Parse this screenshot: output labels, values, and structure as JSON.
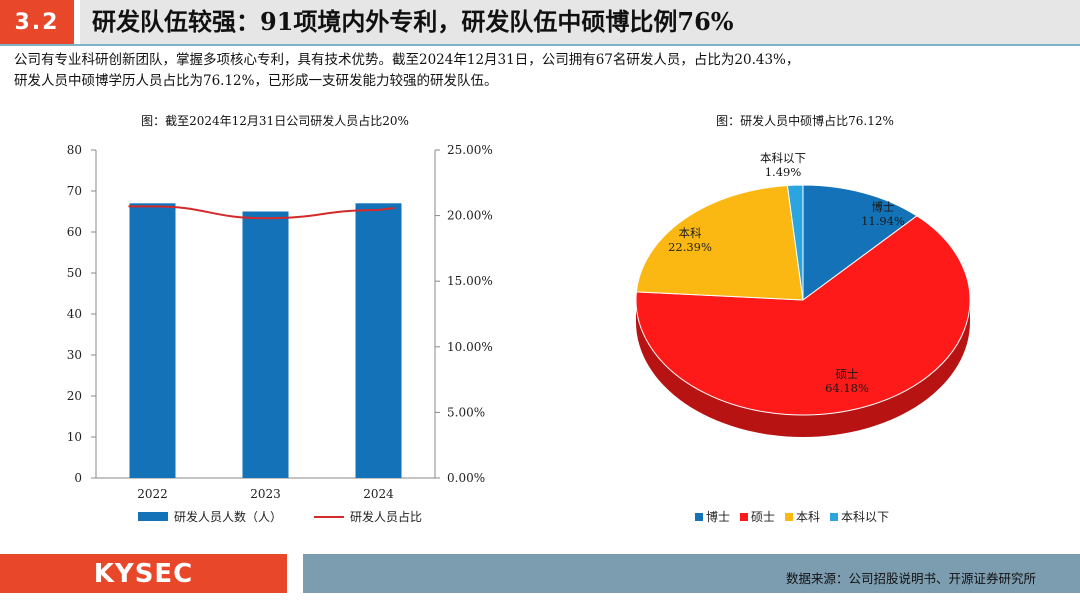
{
  "header": {
    "section_number": "3.2",
    "title": "研发队伍较强：91项境内外专利，研发队伍中硕博比例76%"
  },
  "intro": {
    "line1": "公司有专业科研创新团队，掌握多项核心专利，具有技术优势。截至2024年12月31日，公司拥有67名研发人员，占比为20.43%，",
    "line2": "研发人员中硕博学历人员占比为76.12%，已形成一支研发能力较强的研发队伍。"
  },
  "chart_data": [
    {
      "type": "bar",
      "title": "图：截至2024年12月31日公司研发人员占比20%",
      "categories": [
        "2022",
        "2023",
        "2024"
      ],
      "series": [
        {
          "name": "研发人员人数（人）",
          "kind": "bar",
          "axis": "left",
          "values": [
            67,
            65,
            67
          ],
          "color": "#1372b8"
        },
        {
          "name": "研发人员占比",
          "kind": "line",
          "axis": "right",
          "values": [
            20.7,
            19.8,
            20.43
          ],
          "color": "#d42a2a"
        }
      ],
      "y_left": {
        "min": 0,
        "max": 80,
        "ticks": [
          "0",
          "10",
          "20",
          "30",
          "40",
          "50",
          "60",
          "70",
          "80"
        ]
      },
      "y_right": {
        "min": 0,
        "max": 25,
        "ticks": [
          "0.00%",
          "5.00%",
          "10.00%",
          "15.00%",
          "20.00%",
          "25.00%"
        ]
      },
      "legend_position": "bottom"
    },
    {
      "type": "pie",
      "title": "图：研发人员中硕博占比76.12%",
      "slices": [
        {
          "label": "博士",
          "value": 11.94,
          "value_label": "11.94%",
          "color": "#1372b8"
        },
        {
          "label": "硕士",
          "value": 64.18,
          "value_label": "64.18%",
          "color": "#ff1a1a"
        },
        {
          "label": "本科",
          "value": 22.39,
          "value_label": "22.39%",
          "color": "#fbb812"
        },
        {
          "label": "本科以下",
          "value": 1.49,
          "value_label": "1.49%",
          "color": "#2aa5e0"
        }
      ],
      "legend_position": "bottom"
    }
  ],
  "footer": {
    "logo": "KYSEC",
    "source": "数据来源：公司招股说明书、开源证券研究所"
  }
}
